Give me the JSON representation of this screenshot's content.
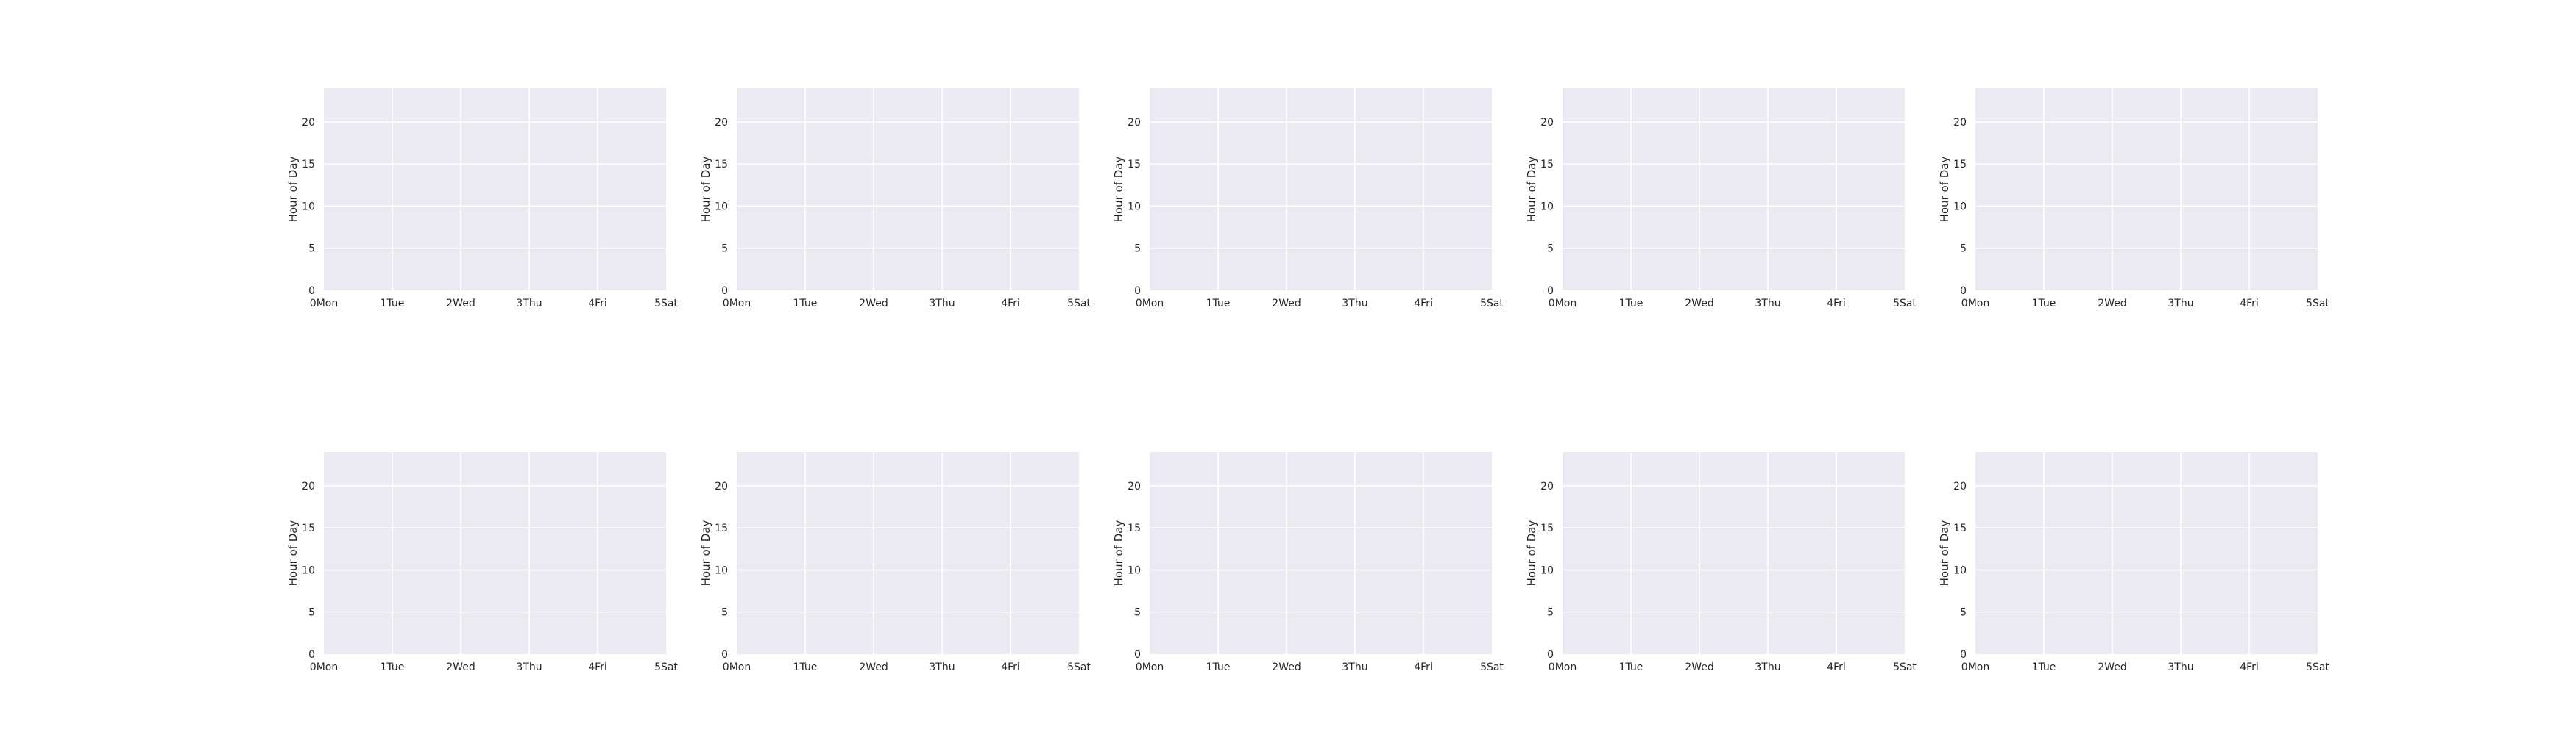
{
  "chart_data": [
    {
      "type": "heatmap",
      "ylabel": "Hour of Day",
      "xlim": [
        0,
        5
      ],
      "ylim": [
        0,
        24
      ],
      "x_ticks": [
        {
          "value": 0,
          "label": "0Mon"
        },
        {
          "value": 1,
          "label": "1Tue"
        },
        {
          "value": 2,
          "label": "2Wed"
        },
        {
          "value": 3,
          "label": "3Thu"
        },
        {
          "value": 4,
          "label": "4Fri"
        },
        {
          "value": 5,
          "label": "5Sat"
        }
      ],
      "y_ticks": [
        0,
        5,
        10,
        15,
        20
      ],
      "grid": true,
      "facecolor": "#eaeaf2",
      "gridcolor": "#ffffff",
      "values": []
    },
    {
      "type": "heatmap",
      "ylabel": "Hour of Day",
      "xlim": [
        0,
        5
      ],
      "ylim": [
        0,
        24
      ],
      "x_ticks": [
        {
          "value": 0,
          "label": "0Mon"
        },
        {
          "value": 1,
          "label": "1Tue"
        },
        {
          "value": 2,
          "label": "2Wed"
        },
        {
          "value": 3,
          "label": "3Thu"
        },
        {
          "value": 4,
          "label": "4Fri"
        },
        {
          "value": 5,
          "label": "5Sat"
        }
      ],
      "y_ticks": [
        0,
        5,
        10,
        15,
        20
      ],
      "grid": true,
      "facecolor": "#eaeaf2",
      "gridcolor": "#ffffff",
      "values": []
    },
    {
      "type": "heatmap",
      "ylabel": "Hour of Day",
      "xlim": [
        0,
        5
      ],
      "ylim": [
        0,
        24
      ],
      "x_ticks": [
        {
          "value": 0,
          "label": "0Mon"
        },
        {
          "value": 1,
          "label": "1Tue"
        },
        {
          "value": 2,
          "label": "2Wed"
        },
        {
          "value": 3,
          "label": "3Thu"
        },
        {
          "value": 4,
          "label": "4Fri"
        },
        {
          "value": 5,
          "label": "5Sat"
        }
      ],
      "y_ticks": [
        0,
        5,
        10,
        15,
        20
      ],
      "grid": true,
      "facecolor": "#eaeaf2",
      "gridcolor": "#ffffff",
      "values": []
    },
    {
      "type": "heatmap",
      "ylabel": "Hour of Day",
      "xlim": [
        0,
        5
      ],
      "ylim": [
        0,
        24
      ],
      "x_ticks": [
        {
          "value": 0,
          "label": "0Mon"
        },
        {
          "value": 1,
          "label": "1Tue"
        },
        {
          "value": 2,
          "label": "2Wed"
        },
        {
          "value": 3,
          "label": "3Thu"
        },
        {
          "value": 4,
          "label": "4Fri"
        },
        {
          "value": 5,
          "label": "5Sat"
        }
      ],
      "y_ticks": [
        0,
        5,
        10,
        15,
        20
      ],
      "grid": true,
      "facecolor": "#eaeaf2",
      "gridcolor": "#ffffff",
      "values": []
    },
    {
      "type": "heatmap",
      "ylabel": "Hour of Day",
      "xlim": [
        0,
        5
      ],
      "ylim": [
        0,
        24
      ],
      "x_ticks": [
        {
          "value": 0,
          "label": "0Mon"
        },
        {
          "value": 1,
          "label": "1Tue"
        },
        {
          "value": 2,
          "label": "2Wed"
        },
        {
          "value": 3,
          "label": "3Thu"
        },
        {
          "value": 4,
          "label": "4Fri"
        },
        {
          "value": 5,
          "label": "5Sat"
        }
      ],
      "y_ticks": [
        0,
        5,
        10,
        15,
        20
      ],
      "grid": true,
      "facecolor": "#eaeaf2",
      "gridcolor": "#ffffff",
      "values": []
    },
    {
      "type": "heatmap",
      "ylabel": "Hour of Day",
      "xlim": [
        0,
        5
      ],
      "ylim": [
        0,
        24
      ],
      "x_ticks": [
        {
          "value": 0,
          "label": "0Mon"
        },
        {
          "value": 1,
          "label": "1Tue"
        },
        {
          "value": 2,
          "label": "2Wed"
        },
        {
          "value": 3,
          "label": "3Thu"
        },
        {
          "value": 4,
          "label": "4Fri"
        },
        {
          "value": 5,
          "label": "5Sat"
        }
      ],
      "y_ticks": [
        0,
        5,
        10,
        15,
        20
      ],
      "grid": true,
      "facecolor": "#eaeaf2",
      "gridcolor": "#ffffff",
      "values": []
    },
    {
      "type": "heatmap",
      "ylabel": "Hour of Day",
      "xlim": [
        0,
        5
      ],
      "ylim": [
        0,
        24
      ],
      "x_ticks": [
        {
          "value": 0,
          "label": "0Mon"
        },
        {
          "value": 1,
          "label": "1Tue"
        },
        {
          "value": 2,
          "label": "2Wed"
        },
        {
          "value": 3,
          "label": "3Thu"
        },
        {
          "value": 4,
          "label": "4Fri"
        },
        {
          "value": 5,
          "label": "5Sat"
        }
      ],
      "y_ticks": [
        0,
        5,
        10,
        15,
        20
      ],
      "grid": true,
      "facecolor": "#eaeaf2",
      "gridcolor": "#ffffff",
      "values": []
    },
    {
      "type": "heatmap",
      "ylabel": "Hour of Day",
      "xlim": [
        0,
        5
      ],
      "ylim": [
        0,
        24
      ],
      "x_ticks": [
        {
          "value": 0,
          "label": "0Mon"
        },
        {
          "value": 1,
          "label": "1Tue"
        },
        {
          "value": 2,
          "label": "2Wed"
        },
        {
          "value": 3,
          "label": "3Thu"
        },
        {
          "value": 4,
          "label": "4Fri"
        },
        {
          "value": 5,
          "label": "5Sat"
        }
      ],
      "y_ticks": [
        0,
        5,
        10,
        15,
        20
      ],
      "grid": true,
      "facecolor": "#eaeaf2",
      "gridcolor": "#ffffff",
      "values": []
    },
    {
      "type": "heatmap",
      "ylabel": "Hour of Day",
      "xlim": [
        0,
        5
      ],
      "ylim": [
        0,
        24
      ],
      "x_ticks": [
        {
          "value": 0,
          "label": "0Mon"
        },
        {
          "value": 1,
          "label": "1Tue"
        },
        {
          "value": 2,
          "label": "2Wed"
        },
        {
          "value": 3,
          "label": "3Thu"
        },
        {
          "value": 4,
          "label": "4Fri"
        },
        {
          "value": 5,
          "label": "5Sat"
        }
      ],
      "y_ticks": [
        0,
        5,
        10,
        15,
        20
      ],
      "grid": true,
      "facecolor": "#eaeaf2",
      "gridcolor": "#ffffff",
      "values": []
    },
    {
      "type": "heatmap",
      "ylabel": "Hour of Day",
      "xlim": [
        0,
        5
      ],
      "ylim": [
        0,
        24
      ],
      "x_ticks": [
        {
          "value": 0,
          "label": "0Mon"
        },
        {
          "value": 1,
          "label": "1Tue"
        },
        {
          "value": 2,
          "label": "2Wed"
        },
        {
          "value": 3,
          "label": "3Thu"
        },
        {
          "value": 4,
          "label": "4Fri"
        },
        {
          "value": 5,
          "label": "5Sat"
        }
      ],
      "y_ticks": [
        0,
        5,
        10,
        15,
        20
      ],
      "grid": true,
      "facecolor": "#eaeaf2",
      "gridcolor": "#ffffff",
      "values": []
    }
  ]
}
